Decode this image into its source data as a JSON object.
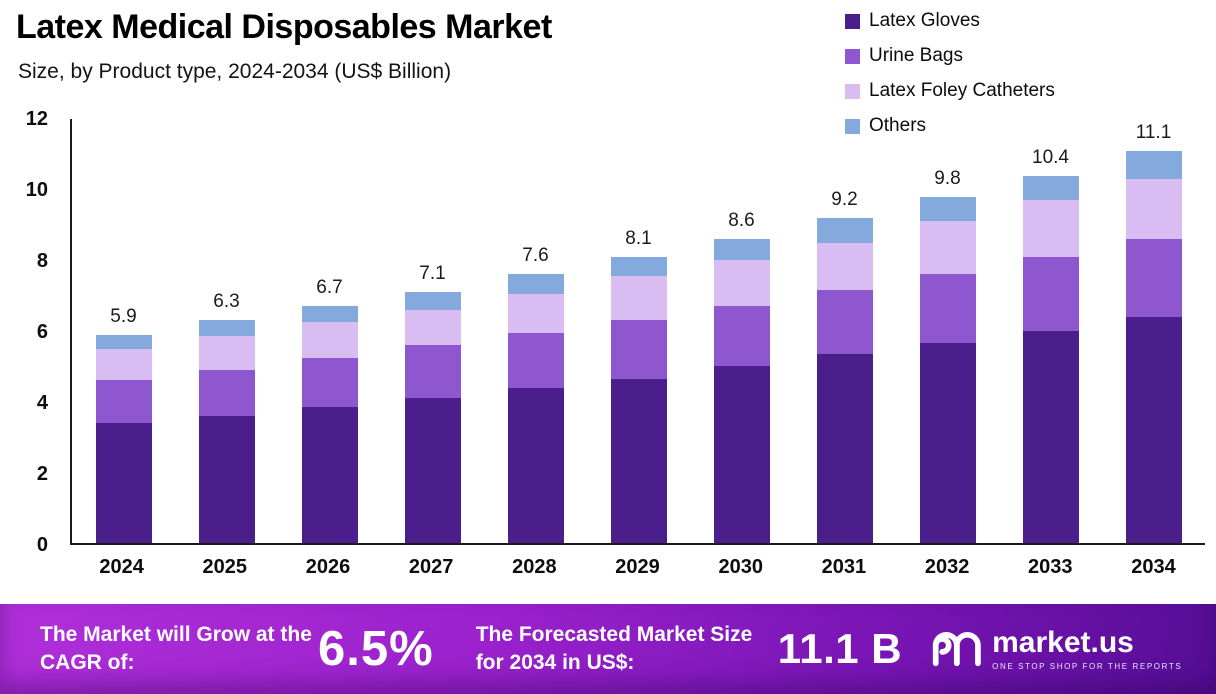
{
  "header": {
    "title": "Latex Medical Disposables Market",
    "subtitle": "Size, by Product type, 2024-2034 (US$ Billion)"
  },
  "chart_data": {
    "type": "bar",
    "stacked": true,
    "title": "Latex Medical Disposables Market Size, by Product type, 2024-2034 (US$ Billion)",
    "categories": [
      "2024",
      "2025",
      "2026",
      "2027",
      "2028",
      "2029",
      "2030",
      "2031",
      "2032",
      "2033",
      "2034"
    ],
    "series": [
      {
        "name": "Latex Gloves",
        "color": "#4a1f8c",
        "values": [
          3.4,
          3.6,
          3.85,
          4.1,
          4.4,
          4.65,
          5.0,
          5.35,
          5.65,
          6.0,
          6.4
        ]
      },
      {
        "name": "Urine Bags",
        "color": "#8f57cf",
        "values": [
          1.2,
          1.3,
          1.4,
          1.5,
          1.55,
          1.65,
          1.7,
          1.8,
          1.95,
          2.1,
          2.2
        ]
      },
      {
        "name": "Latex Foley Catheters",
        "color": "#d9bdf2",
        "values": [
          0.9,
          0.95,
          1.0,
          1.0,
          1.1,
          1.25,
          1.3,
          1.35,
          1.5,
          1.6,
          1.7
        ]
      },
      {
        "name": "Others",
        "color": "#84a9dc",
        "values": [
          0.4,
          0.45,
          0.45,
          0.5,
          0.55,
          0.55,
          0.6,
          0.7,
          0.7,
          0.7,
          0.8
        ]
      }
    ],
    "totals": [
      "5.9",
      "6.3",
      "6.7",
      "7.1",
      "7.6",
      "8.1",
      "8.6",
      "9.2",
      "9.8",
      "10.4",
      "11.1"
    ],
    "xlabel": "",
    "ylabel": "",
    "ylim": [
      0,
      12
    ],
    "yticks": [
      0,
      2,
      4,
      6,
      8,
      10,
      12
    ],
    "grid": false,
    "legend_position": "top-right"
  },
  "footer": {
    "cagr_label": "The Market will Grow at the CAGR of:",
    "cagr_value": "6.5%",
    "forecast_label": "The Forecasted Market Size for 2034 in US$:",
    "forecast_value": "11.1 B",
    "brand_name": "market.us",
    "brand_tagline": "ONE STOP SHOP FOR THE REPORTS"
  }
}
